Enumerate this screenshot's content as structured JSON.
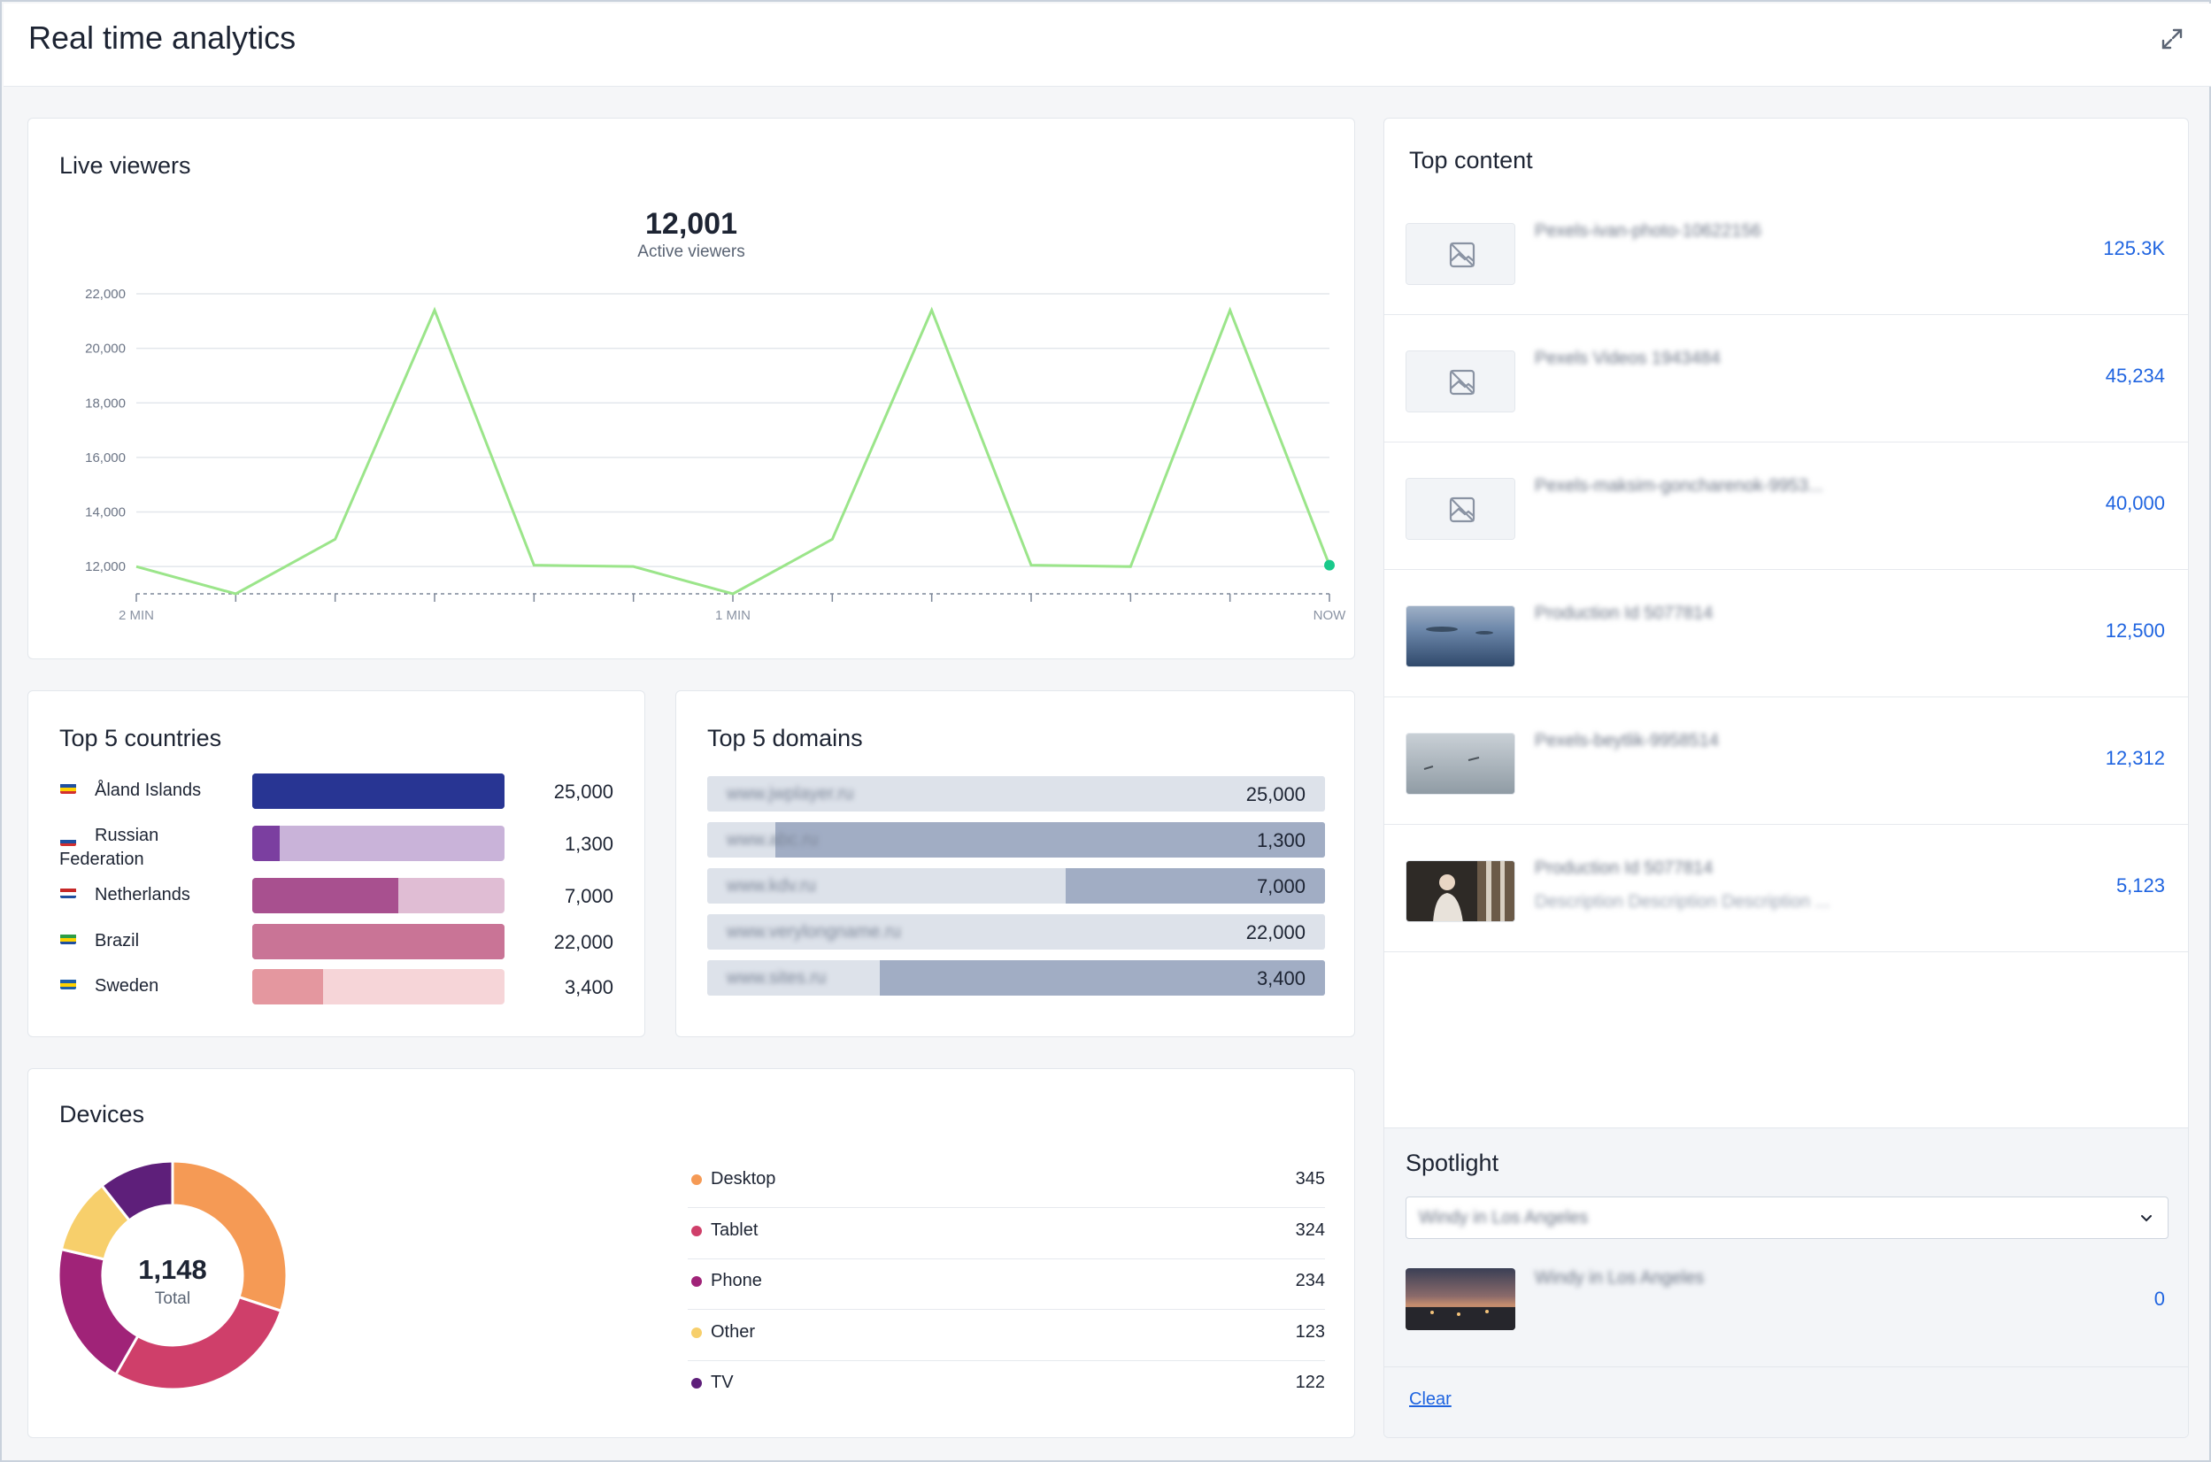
{
  "header": {
    "title": "Real time analytics",
    "expand_icon": "expand-icon"
  },
  "live_viewers": {
    "title": "Live viewers",
    "value": "12,001",
    "label": "Active viewers",
    "line_color": "#9be58a",
    "dot_color": "#19c98b",
    "chart_data": {
      "type": "line",
      "title": "",
      "xlabel": "",
      "ylabel": "",
      "x_tick_labels": [
        "2 MIN",
        "1 MIN",
        "NOW"
      ],
      "y_ticks": [
        12000,
        14000,
        16000,
        18000,
        20000,
        22000
      ],
      "y_tick_labels": [
        "12,000",
        "14,000",
        "16,000",
        "18,000",
        "20,000",
        "22,000"
      ],
      "ylim": [
        11000,
        22000
      ],
      "grid": true,
      "series": [
        {
          "values": [
            12000,
            11000,
            13000,
            21400,
            12050,
            12000,
            11000,
            13000,
            21400,
            12050,
            12000,
            21400,
            12050
          ]
        }
      ]
    }
  },
  "countries": {
    "title": "Top 5 countries",
    "rows": [
      {
        "name": "Åland Islands",
        "value": "25,000",
        "fraction": 1.0,
        "color": "#283593",
        "track": "#283593",
        "flag": [
          "#1f4fa0",
          "#ffd200",
          "#d32f2f"
        ]
      },
      {
        "name": "Russian Federation",
        "value": "1,300",
        "fraction": 0.11,
        "color": "#7b3fa0",
        "track": "#c9b3d9",
        "flag": [
          "#ffffff",
          "#1f4fa0",
          "#d32f2f"
        ]
      },
      {
        "name": "Netherlands",
        "value": "7,000",
        "fraction": 0.58,
        "color": "#a8508f",
        "track": "#e0bdd4",
        "flag": [
          "#c62828",
          "#ffffff",
          "#1f4fa0"
        ]
      },
      {
        "name": "Brazil",
        "value": "22,000",
        "fraction": 1.0,
        "color": "#c97496",
        "track": "#c97496",
        "flag": [
          "#2e9e45",
          "#ffd200",
          "#1f4fa0"
        ]
      },
      {
        "name": "Sweden",
        "value": "3,400",
        "fraction": 0.28,
        "color": "#e4979f",
        "track": "#f6d5d8",
        "flag": [
          "#1f5fa8",
          "#ffd200",
          "#1f5fa8"
        ]
      }
    ]
  },
  "domains": {
    "title": "Top 5 domains",
    "rows": [
      {
        "name": "www.jwplayer.ru",
        "value": "25,000",
        "fraction": 0.0
      },
      {
        "name": "www.abc.ru",
        "value": "1,300",
        "fraction": 0.89
      },
      {
        "name": "www.kdv.ru",
        "value": "7,000",
        "fraction": 0.42
      },
      {
        "name": "www.verylongname.ru",
        "value": "22,000",
        "fraction": 0.0
      },
      {
        "name": "www.sites.ru",
        "value": "3,400",
        "fraction": 0.72
      }
    ]
  },
  "devices": {
    "title": "Devices",
    "total_value": "1,148",
    "total_label": "Total",
    "items": [
      {
        "name": "Desktop",
        "value": "345",
        "count": 345,
        "color": "#f59a55"
      },
      {
        "name": "Tablet",
        "value": "324",
        "count": 324,
        "color": "#cf3f6a"
      },
      {
        "name": "Phone",
        "value": "234",
        "count": 234,
        "color": "#a02378"
      },
      {
        "name": "Other",
        "value": "123",
        "count": 123,
        "color": "#f7cf6b"
      },
      {
        "name": "TV",
        "value": "122",
        "count": 122,
        "color": "#5e1f7a"
      }
    ]
  },
  "top_content": {
    "title": "Top content",
    "items": [
      {
        "name": "Pexels-ivan-photo-10622156",
        "desc": "",
        "value": "125.3K",
        "thumb": "placeholder"
      },
      {
        "name": "Pexels Videos 1943484",
        "desc": "",
        "value": "45,234",
        "thumb": "placeholder"
      },
      {
        "name": "Pexels-maksim-goncharenok-9953...",
        "desc": "",
        "value": "40,000",
        "thumb": "placeholder"
      },
      {
        "name": "Production Id 5077814",
        "desc": "",
        "value": "12,500",
        "thumb": "sea"
      },
      {
        "name": "Pexels-beytlik-9958514",
        "desc": "",
        "value": "12,312",
        "thumb": "sky"
      },
      {
        "name": "Production Id 5077814",
        "desc": "Description Description Description ...",
        "value": "5,123",
        "thumb": "person"
      }
    ]
  },
  "spotlight": {
    "title": "Spotlight",
    "selected": "Windy in Los Angeles",
    "item": {
      "name": "Windy in Los Angeles",
      "value": "0"
    },
    "clear_label": "Clear"
  }
}
